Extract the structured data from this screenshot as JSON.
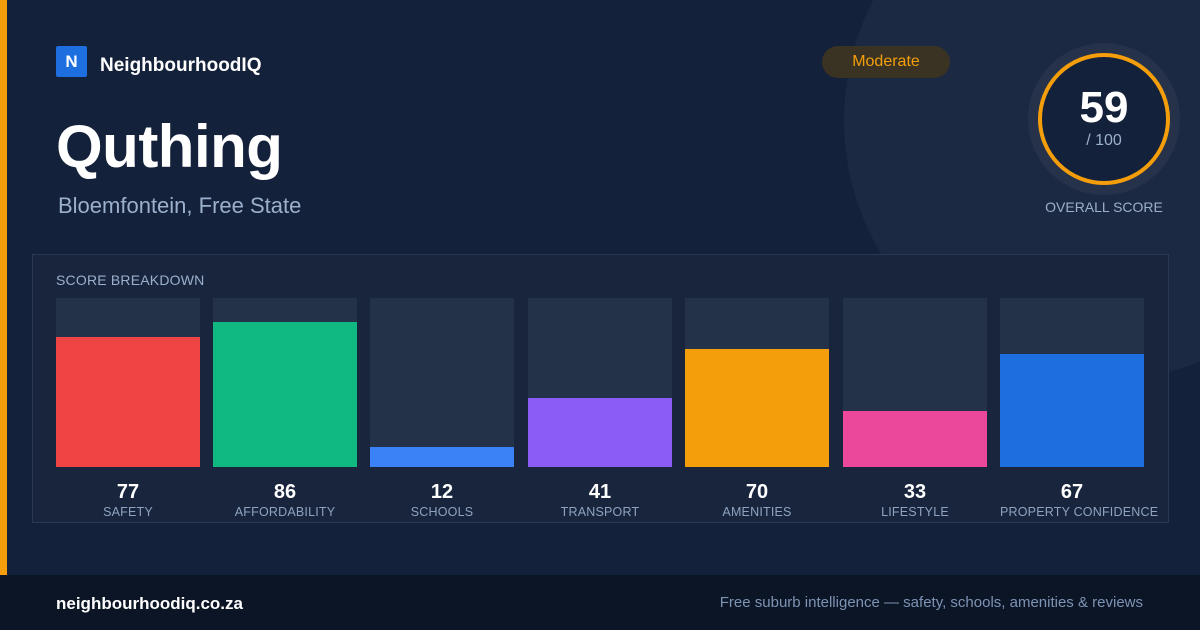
{
  "brand": {
    "logo_letter": "N",
    "name": "NeighbourhoodIQ"
  },
  "suburb": {
    "name": "Quthing",
    "location": "Bloemfontein, Free State"
  },
  "badge": {
    "label": "Moderate"
  },
  "overall": {
    "score": "59",
    "max": "/ 100",
    "label": "OVERALL SCORE"
  },
  "colors": {
    "accent": "#f59e0b",
    "background": "#14213a",
    "brand_blue": "#1d6fe0"
  },
  "breakdown": {
    "title": "SCORE BREAKDOWN",
    "items": [
      {
        "label": "SAFETY",
        "value": "77",
        "score": 77,
        "color": "#ef4444"
      },
      {
        "label": "AFFORDABILITY",
        "value": "86",
        "score": 86,
        "color": "#10b981"
      },
      {
        "label": "SCHOOLS",
        "value": "12",
        "score": 12,
        "color": "#3b82f6"
      },
      {
        "label": "TRANSPORT",
        "value": "41",
        "score": 41,
        "color": "#8b5cf6"
      },
      {
        "label": "AMENITIES",
        "value": "70",
        "score": 70,
        "color": "#f59e0b"
      },
      {
        "label": "LIFESTYLE",
        "value": "33",
        "score": 33,
        "color": "#ec4899"
      },
      {
        "label": "PROPERTY CONFIDENCE",
        "value": "67",
        "score": 67,
        "color": "#1d6fe0"
      }
    ]
  },
  "footer": {
    "url": "neighbourhoodiq.co.za",
    "tagline": "Free suburb intelligence — safety, schools, amenities & reviews"
  }
}
